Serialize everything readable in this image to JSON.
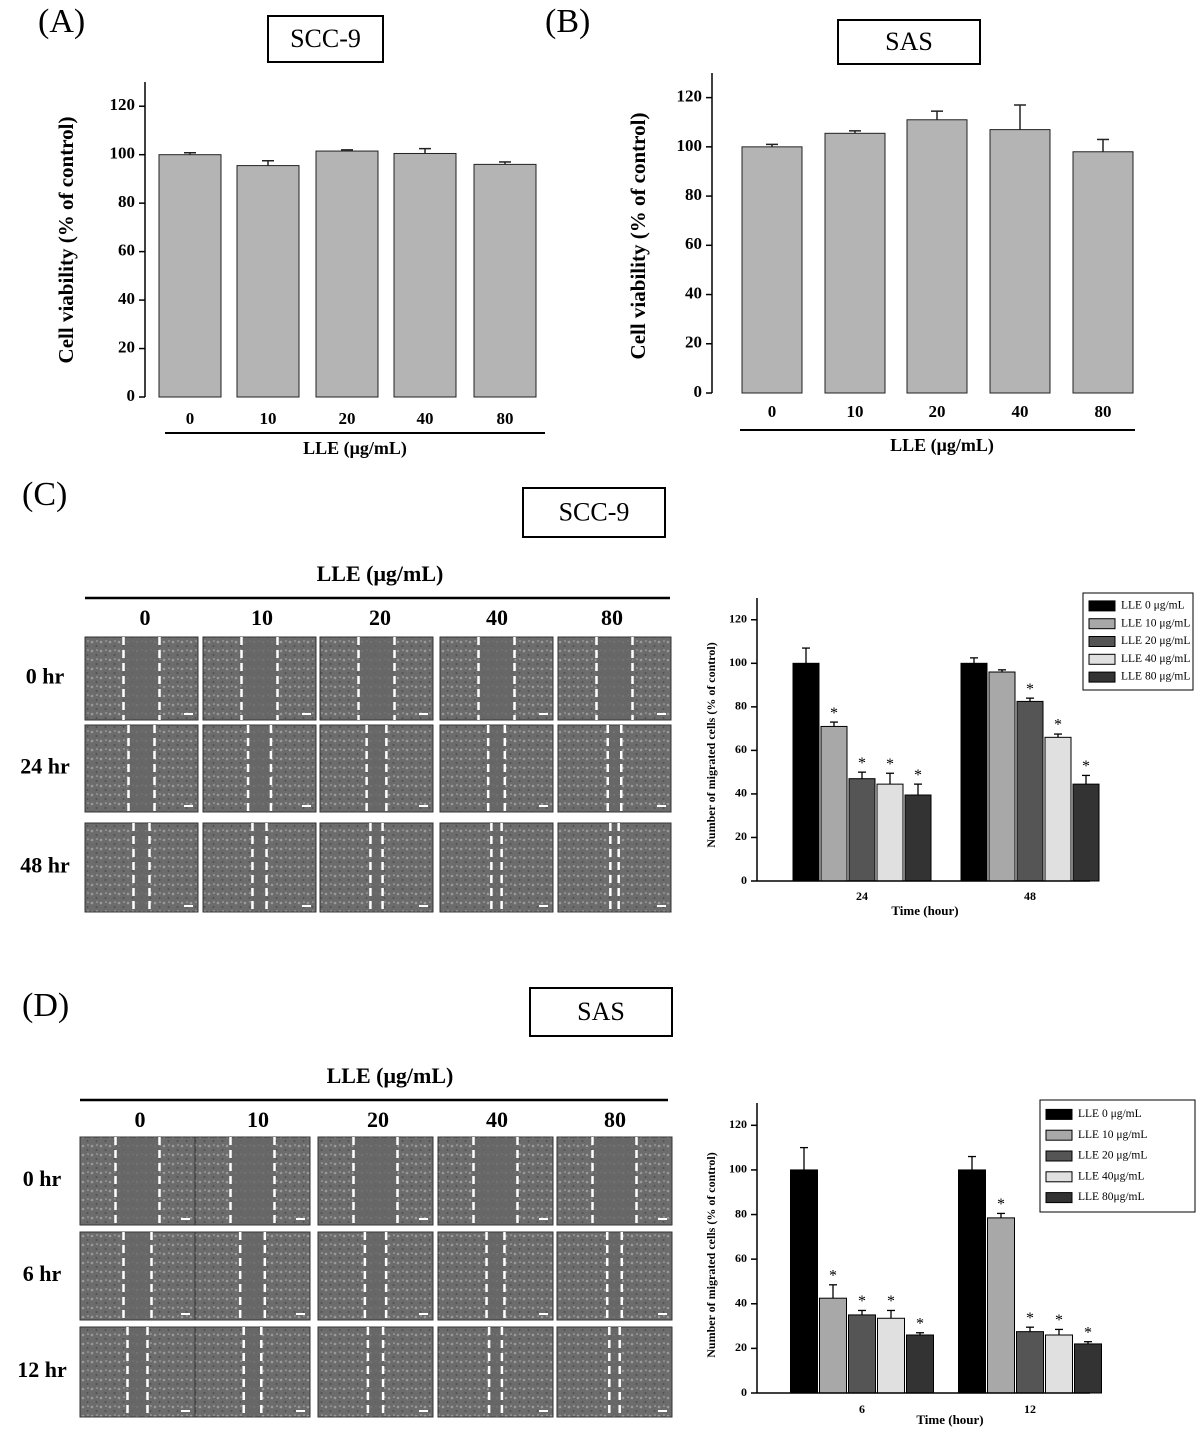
{
  "chart_data": [
    {
      "type": "bar",
      "panel": "(A)",
      "title": "SCC-9",
      "ylabel": "Cell viability (% of control)",
      "xlabel": "LLE (μg/mL)",
      "categories": [
        "0",
        "10",
        "20",
        "40",
        "80"
      ],
      "values": [
        100,
        95.5,
        101.5,
        100.5,
        96
      ],
      "errors": [
        0.8,
        2,
        0.5,
        2,
        1
      ],
      "color": "#b4b4b4",
      "ylim": [
        0,
        130
      ],
      "yticks": [
        0,
        20,
        40,
        60,
        80,
        100,
        120
      ]
    },
    {
      "type": "bar",
      "panel": "(B)",
      "title": "SAS",
      "ylabel": "Cell viability (% of control)",
      "xlabel": "LLE (μg/mL)",
      "categories": [
        "0",
        "10",
        "20",
        "40",
        "80"
      ],
      "values": [
        100,
        105.5,
        111,
        107,
        98
      ],
      "errors": [
        1,
        1,
        3.5,
        10,
        5
      ],
      "color": "#b4b4b4",
      "ylim": [
        0,
        130
      ],
      "yticks": [
        0,
        20,
        40,
        60,
        80,
        100,
        120
      ]
    },
    {
      "type": "grouped_bar",
      "ylabel": "Number of migrated cells (% of control)",
      "xlabel": "Time (hour)",
      "categories": [
        "24",
        "48"
      ],
      "ylim": [
        0,
        130
      ],
      "yticks": [
        0,
        20,
        40,
        60,
        80,
        100,
        120
      ],
      "legend": "top-right",
      "series": [
        {
          "name": "LLE 0 μg/mL",
          "color": "#000000",
          "values": [
            100,
            100
          ],
          "errors": [
            7,
            2.5
          ],
          "annotations": [
            null,
            null
          ]
        },
        {
          "name": "LLE 10 μg/mL",
          "color": "#a8a8a8",
          "values": [
            71,
            96
          ],
          "errors": [
            2,
            1
          ],
          "annotations": [
            "*",
            null
          ]
        },
        {
          "name": "LLE 20 μg/mL",
          "color": "#555555",
          "values": [
            47,
            82.5
          ],
          "errors": [
            3,
            1.5
          ],
          "annotations": [
            "*",
            "*"
          ]
        },
        {
          "name": "LLE 40 μg/mL",
          "color": "#e0e0e0",
          "values": [
            44.5,
            66
          ],
          "errors": [
            5,
            1.5
          ],
          "annotations": [
            "*",
            "*"
          ]
        },
        {
          "name": "LLE 80 μg/mL",
          "color": "#333333",
          "values": [
            39.5,
            44.5
          ],
          "errors": [
            5,
            4
          ],
          "annotations": [
            "*",
            "*"
          ]
        }
      ]
    },
    {
      "type": "grouped_bar",
      "ylabel": "Number of migrated cells (% of control)",
      "xlabel": "Time (hour)",
      "categories": [
        "6",
        "12"
      ],
      "ylim": [
        0,
        130
      ],
      "yticks": [
        0,
        20,
        40,
        60,
        80,
        100,
        120
      ],
      "legend": "top-right",
      "series": [
        {
          "name": "LLE 0 μg/mL",
          "color": "#000000",
          "values": [
            100,
            100
          ],
          "errors": [
            10,
            6
          ],
          "annotations": [
            null,
            null
          ]
        },
        {
          "name": "LLE 10 μg/mL",
          "color": "#a8a8a8",
          "values": [
            42.5,
            78.5
          ],
          "errors": [
            6,
            2
          ],
          "annotations": [
            "*",
            "*"
          ]
        },
        {
          "name": "LLE 20 μg/mL",
          "color": "#555555",
          "values": [
            35,
            27.5
          ],
          "errors": [
            2,
            2
          ],
          "annotations": [
            "*",
            "*"
          ]
        },
        {
          "name": "LLE 40μg/mL",
          "color": "#e0e0e0",
          "values": [
            33.5,
            26
          ],
          "errors": [
            3.5,
            2.5
          ],
          "annotations": [
            "*",
            "*"
          ]
        },
        {
          "name": "LLE 80μg/mL",
          "color": "#333333",
          "values": [
            26,
            22
          ],
          "errors": [
            1,
            1
          ],
          "annotations": [
            "*",
            "*"
          ]
        }
      ]
    }
  ],
  "grids": [
    {
      "panel": "(C)",
      "title": "SCC-9",
      "header": "LLE (μg/mL)",
      "columns": [
        "0",
        "10",
        "20",
        "40",
        "80"
      ],
      "rows": [
        "0 hr",
        "24 hr",
        "48 hr"
      ]
    },
    {
      "panel": "(D)",
      "title": "SAS",
      "header": "LLE (μg/mL)",
      "columns": [
        "0",
        "10",
        "20",
        "40",
        "80"
      ],
      "rows": [
        "0 hr",
        "6 hr",
        "12 hr"
      ]
    }
  ]
}
